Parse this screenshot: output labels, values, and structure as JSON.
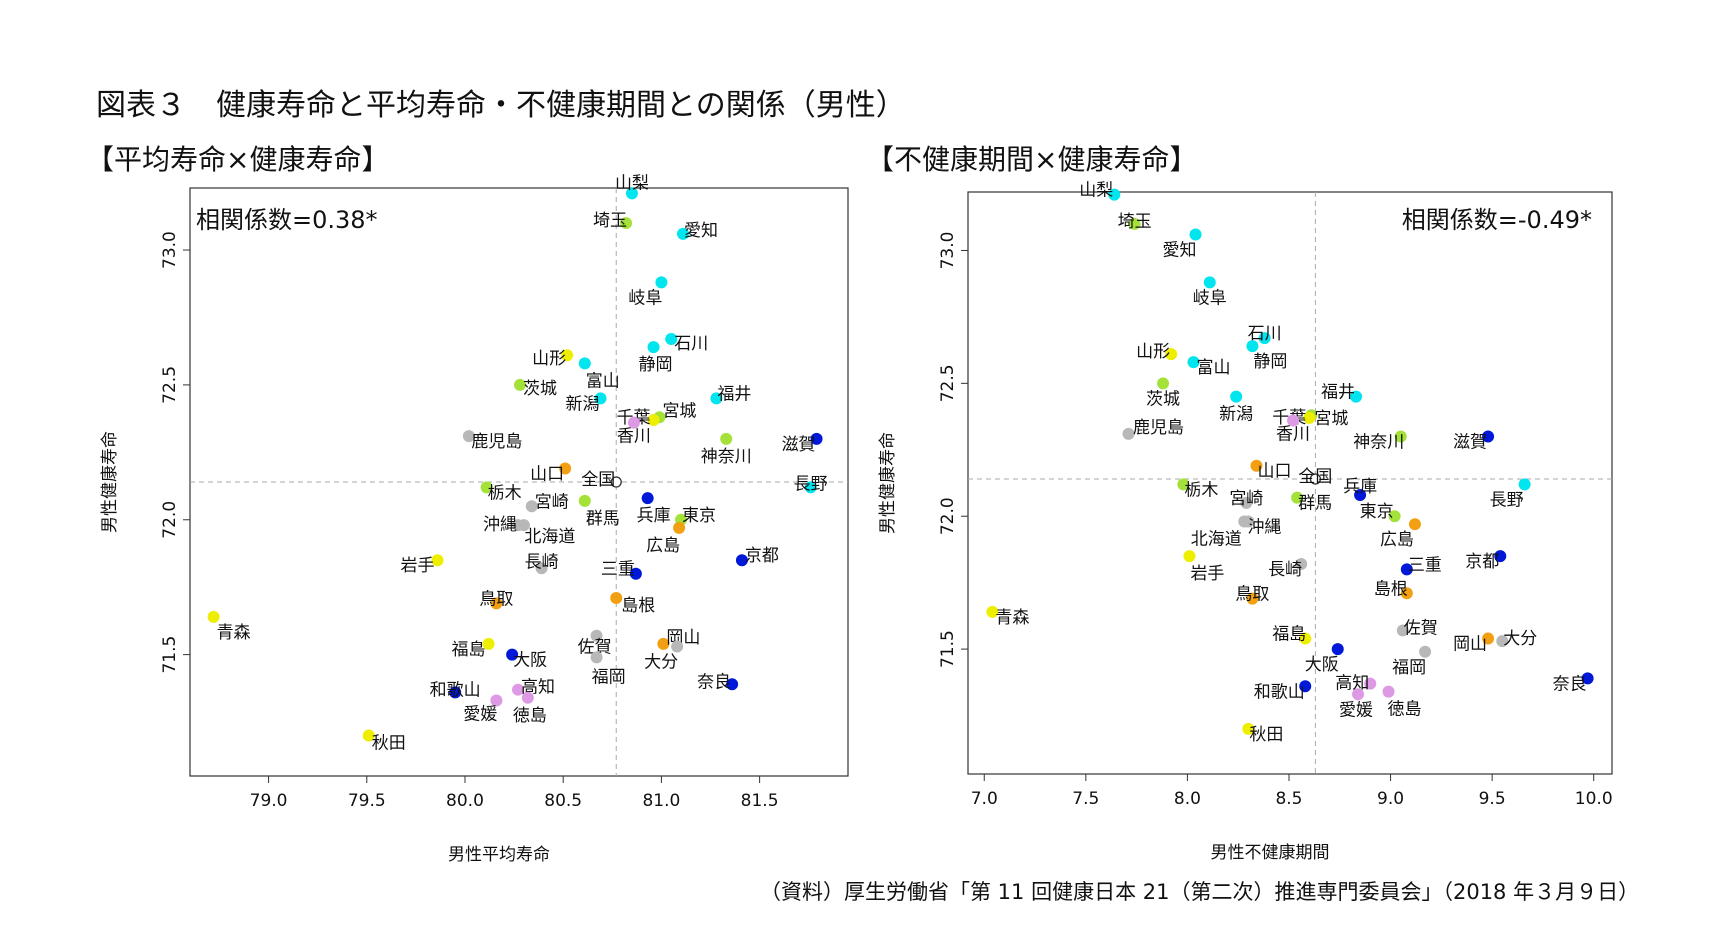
{
  "title": "図表３　健康寿命と平均寿命・不健康期間との関係（男性）",
  "source": "（資料）厚生労働省「第 11 回健康日本 21（第二次）推進専門委員会」（2018 年３月９日）",
  "colors": {
    "cyan": "#00e5ee",
    "green": "#a4e23a",
    "yellow": "#eeee00",
    "gray": "#b8b8b8",
    "orange": "#f2a012",
    "blue": "#0018d8",
    "purple": "#dd99e4",
    "violet": "#b090d8"
  },
  "chart_data": [
    {
      "type": "scatter",
      "heading": "【平均寿命×健康寿命】",
      "xlabel": "男性平均寿命",
      "ylabel": "男性健康寿命",
      "annotation": "相関係数=0.38*",
      "xlim": [
        78.6,
        81.95
      ],
      "ylim": [
        71.05,
        73.23
      ],
      "xticks": [
        "79.0",
        "79.5",
        "80.0",
        "80.5",
        "81.0",
        "81.5"
      ],
      "yticks": [
        "71.5",
        "72.0",
        "72.5",
        "73.0"
      ],
      "grid": false,
      "reference_lines": {
        "x": 80.77,
        "y": 72.14
      },
      "points": [
        {
          "label": "山梨",
          "x": 80.85,
          "y": 73.21,
          "color": "cyan",
          "dx": 0,
          "dy": -10,
          "anchor": "middle"
        },
        {
          "label": "埼玉",
          "x": 80.82,
          "y": 73.1,
          "color": "green",
          "dx": -16,
          "dy": -2,
          "anchor": "middle"
        },
        {
          "label": "愛知",
          "x": 81.11,
          "y": 73.06,
          "color": "cyan",
          "dx": 18,
          "dy": -3,
          "anchor": "middle"
        },
        {
          "label": "岐阜",
          "x": 81.0,
          "y": 72.88,
          "color": "cyan",
          "dx": -16,
          "dy": 16,
          "anchor": "middle"
        },
        {
          "label": "石川",
          "x": 81.05,
          "y": 72.67,
          "color": "cyan",
          "dx": 20,
          "dy": 5,
          "anchor": "middle"
        },
        {
          "label": "静岡",
          "x": 80.96,
          "y": 72.64,
          "color": "cyan",
          "dx": 2,
          "dy": 18,
          "anchor": "middle"
        },
        {
          "label": "山形",
          "x": 80.52,
          "y": 72.61,
          "color": "yellow",
          "dx": -18,
          "dy": 4,
          "anchor": "middle"
        },
        {
          "label": "富山",
          "x": 80.61,
          "y": 72.58,
          "color": "cyan",
          "dx": 18,
          "dy": 18,
          "anchor": "middle"
        },
        {
          "label": "茨城",
          "x": 80.28,
          "y": 72.5,
          "color": "green",
          "dx": 20,
          "dy": 4,
          "anchor": "middle"
        },
        {
          "label": "福井",
          "x": 81.28,
          "y": 72.45,
          "color": "cyan",
          "dx": 18,
          "dy": -4,
          "anchor": "middle"
        },
        {
          "label": "新潟",
          "x": 80.69,
          "y": 72.45,
          "color": "cyan",
          "dx": -18,
          "dy": 6,
          "anchor": "middle"
        },
        {
          "label": "宮城",
          "x": 80.99,
          "y": 72.38,
          "color": "green",
          "dx": 20,
          "dy": -6,
          "anchor": "middle"
        },
        {
          "label": "千葉",
          "x": 80.96,
          "y": 72.37,
          "color": "yellow",
          "dx": -20,
          "dy": -2,
          "anchor": "middle"
        },
        {
          "label": "香川",
          "x": 80.86,
          "y": 72.36,
          "color": "purple",
          "dx": 0,
          "dy": 14,
          "anchor": "middle"
        },
        {
          "label": "鹿児島",
          "x": 80.02,
          "y": 72.31,
          "color": "gray",
          "dx": 28,
          "dy": 6,
          "anchor": "middle"
        },
        {
          "label": "神奈川",
          "x": 81.33,
          "y": 72.3,
          "color": "green",
          "dx": 0,
          "dy": 18,
          "anchor": "middle"
        },
        {
          "label": "滋賀",
          "x": 81.79,
          "y": 72.3,
          "color": "blue",
          "dx": -18,
          "dy": 6,
          "anchor": "middle"
        },
        {
          "label": "山口",
          "x": 80.51,
          "y": 72.19,
          "color": "orange",
          "dx": -18,
          "dy": 6,
          "anchor": "middle"
        },
        {
          "label": "全国",
          "x": 80.77,
          "y": 72.14,
          "color": "hollow",
          "dx": -18,
          "dy": -2,
          "anchor": "middle"
        },
        {
          "label": "長野",
          "x": 81.76,
          "y": 72.12,
          "color": "cyan",
          "dx": 0,
          "dy": -3,
          "anchor": "middle"
        },
        {
          "label": "栃木",
          "x": 80.11,
          "y": 72.12,
          "color": "green",
          "dx": 18,
          "dy": 6,
          "anchor": "middle"
        },
        {
          "label": "宮崎",
          "x": 80.34,
          "y": 72.05,
          "color": "gray",
          "dx": 20,
          "dy": -4,
          "anchor": "middle"
        },
        {
          "label": "兵庫",
          "x": 80.93,
          "y": 72.08,
          "color": "blue",
          "dx": 6,
          "dy": 18,
          "anchor": "middle"
        },
        {
          "label": "群馬",
          "x": 80.61,
          "y": 72.07,
          "color": "green",
          "dx": 18,
          "dy": 18,
          "anchor": "middle"
        },
        {
          "label": "東京",
          "x": 81.1,
          "y": 72.0,
          "color": "green",
          "dx": 18,
          "dy": -4,
          "anchor": "middle"
        },
        {
          "label": "沖縄",
          "x": 80.27,
          "y": 71.98,
          "color": "gray",
          "dx": -18,
          "dy": 0,
          "anchor": "middle"
        },
        {
          "label": "北海道",
          "x": 80.3,
          "y": 71.98,
          "color": "gray",
          "dx": 26,
          "dy": 12,
          "anchor": "middle"
        },
        {
          "label": "広島",
          "x": 81.09,
          "y": 71.97,
          "color": "orange",
          "dx": -16,
          "dy": 18,
          "anchor": "middle"
        },
        {
          "label": "京都",
          "x": 81.41,
          "y": 71.85,
          "color": "blue",
          "dx": 20,
          "dy": -4,
          "anchor": "middle"
        },
        {
          "label": "岩手",
          "x": 79.86,
          "y": 71.85,
          "color": "yellow",
          "dx": -20,
          "dy": 6,
          "anchor": "middle"
        },
        {
          "label": "長崎",
          "x": 80.39,
          "y": 71.82,
          "color": "gray",
          "dx": 0,
          "dy": -6,
          "anchor": "middle"
        },
        {
          "label": "三重",
          "x": 80.87,
          "y": 71.8,
          "color": "blue",
          "dx": -18,
          "dy": -4,
          "anchor": "middle"
        },
        {
          "label": "鳥取",
          "x": 80.16,
          "y": 71.69,
          "color": "orange",
          "dx": 0,
          "dy": -4,
          "anchor": "middle"
        },
        {
          "label": "島根",
          "x": 80.77,
          "y": 71.71,
          "color": "orange",
          "dx": 22,
          "dy": 8,
          "anchor": "middle"
        },
        {
          "label": "青森",
          "x": 78.72,
          "y": 71.64,
          "color": "yellow",
          "dx": 20,
          "dy": 16,
          "anchor": "middle"
        },
        {
          "label": "佐賀",
          "x": 80.67,
          "y": 71.57,
          "color": "gray",
          "dx": -2,
          "dy": 12,
          "anchor": "middle"
        },
        {
          "label": "岡山",
          "x": 81.01,
          "y": 71.54,
          "color": "orange",
          "dx": 20,
          "dy": -6,
          "anchor": "middle"
        },
        {
          "label": "福島",
          "x": 80.12,
          "y": 71.54,
          "color": "yellow",
          "dx": -20,
          "dy": 6,
          "anchor": "middle"
        },
        {
          "label": "大分",
          "x": 81.08,
          "y": 71.53,
          "color": "gray",
          "dx": -16,
          "dy": 16,
          "anchor": "middle"
        },
        {
          "label": "大阪",
          "x": 80.24,
          "y": 71.5,
          "color": "blue",
          "dx": 18,
          "dy": 6,
          "anchor": "middle"
        },
        {
          "label": "福岡",
          "x": 80.67,
          "y": 71.49,
          "color": "gray",
          "dx": 12,
          "dy": 20,
          "anchor": "middle"
        },
        {
          "label": "奈良",
          "x": 81.36,
          "y": 71.39,
          "color": "blue",
          "dx": -18,
          "dy": -2,
          "anchor": "middle"
        },
        {
          "label": "高知",
          "x": 80.27,
          "y": 71.37,
          "color": "purple",
          "dx": 20,
          "dy": -2,
          "anchor": "middle"
        },
        {
          "label": "和歌山",
          "x": 79.95,
          "y": 71.36,
          "color": "blue",
          "dx": 0,
          "dy": -2,
          "anchor": "middle"
        },
        {
          "label": "徳島",
          "x": 80.32,
          "y": 71.34,
          "color": "purple",
          "dx": 2,
          "dy": 18,
          "anchor": "middle"
        },
        {
          "label": "愛媛",
          "x": 80.16,
          "y": 71.33,
          "color": "purple",
          "dx": -16,
          "dy": 14,
          "anchor": "middle"
        },
        {
          "label": "秋田",
          "x": 79.51,
          "y": 71.2,
          "color": "yellow",
          "dx": 20,
          "dy": 8,
          "anchor": "middle"
        }
      ]
    },
    {
      "type": "scatter",
      "heading": "【不健康期間×健康寿命】",
      "xlabel": "男性不健康期間",
      "ylabel": "男性健康寿命",
      "annotation": "相関係数=-0.49*",
      "xlim": [
        6.92,
        10.09
      ],
      "ylim": [
        71.03,
        73.22
      ],
      "xticks": [
        "7.0",
        "7.5",
        "8.0",
        "8.5",
        "9.0",
        "9.5",
        "10.0"
      ],
      "yticks": [
        "71.5",
        "72.0",
        "72.5",
        "73.0"
      ],
      "grid": false,
      "reference_lines": {
        "x": 8.63,
        "y": 72.14
      },
      "points": [
        {
          "label": "山梨",
          "x": 7.64,
          "y": 73.21,
          "color": "cyan",
          "dx": -18,
          "dy": -4,
          "anchor": "middle"
        },
        {
          "label": "埼玉",
          "x": 7.74,
          "y": 73.1,
          "color": "green",
          "dx": 0,
          "dy": -2,
          "anchor": "middle"
        },
        {
          "label": "愛知",
          "x": 8.04,
          "y": 73.06,
          "color": "cyan",
          "dx": -16,
          "dy": 16,
          "anchor": "middle"
        },
        {
          "label": "岐阜",
          "x": 8.11,
          "y": 72.88,
          "color": "cyan",
          "dx": 0,
          "dy": 16,
          "anchor": "middle"
        },
        {
          "label": "石川",
          "x": 8.38,
          "y": 72.67,
          "color": "cyan",
          "dx": 0,
          "dy": -4,
          "anchor": "middle"
        },
        {
          "label": "静岡",
          "x": 8.32,
          "y": 72.64,
          "color": "cyan",
          "dx": 18,
          "dy": 16,
          "anchor": "middle"
        },
        {
          "label": "山形",
          "x": 7.92,
          "y": 72.61,
          "color": "yellow",
          "dx": -18,
          "dy": -2,
          "anchor": "middle"
        },
        {
          "label": "富山",
          "x": 8.03,
          "y": 72.58,
          "color": "cyan",
          "dx": 20,
          "dy": 6,
          "anchor": "middle"
        },
        {
          "label": "茨城",
          "x": 7.88,
          "y": 72.5,
          "color": "green",
          "dx": 0,
          "dy": 16,
          "anchor": "middle"
        },
        {
          "label": "福井",
          "x": 8.83,
          "y": 72.45,
          "color": "cyan",
          "dx": -18,
          "dy": -4,
          "anchor": "middle"
        },
        {
          "label": "新潟",
          "x": 8.24,
          "y": 72.45,
          "color": "cyan",
          "dx": 0,
          "dy": 18,
          "anchor": "middle"
        },
        {
          "label": "宮城",
          "x": 8.61,
          "y": 72.38,
          "color": "green",
          "dx": 20,
          "dy": 4,
          "anchor": "middle"
        },
        {
          "label": "千葉",
          "x": 8.6,
          "y": 72.37,
          "color": "yellow",
          "dx": -20,
          "dy": 0,
          "anchor": "middle"
        },
        {
          "label": "香川",
          "x": 8.52,
          "y": 72.36,
          "color": "purple",
          "dx": 0,
          "dy": 14,
          "anchor": "middle"
        },
        {
          "label": "鹿児島",
          "x": 7.71,
          "y": 72.31,
          "color": "gray",
          "dx": 30,
          "dy": -6,
          "anchor": "middle"
        },
        {
          "label": "神奈川",
          "x": 9.05,
          "y": 72.3,
          "color": "green",
          "dx": -22,
          "dy": 6,
          "anchor": "middle"
        },
        {
          "label": "滋賀",
          "x": 9.48,
          "y": 72.3,
          "color": "blue",
          "dx": -18,
          "dy": 6,
          "anchor": "middle"
        },
        {
          "label": "山口",
          "x": 8.34,
          "y": 72.19,
          "color": "orange",
          "dx": 18,
          "dy": 6,
          "anchor": "middle"
        },
        {
          "label": "全国",
          "x": 8.63,
          "y": 72.14,
          "color": "hollow",
          "dx": 0,
          "dy": -2,
          "anchor": "middle"
        },
        {
          "label": "長野",
          "x": 9.66,
          "y": 72.12,
          "color": "cyan",
          "dx": -18,
          "dy": 16,
          "anchor": "middle"
        },
        {
          "label": "栃木",
          "x": 7.98,
          "y": 72.12,
          "color": "green",
          "dx": 18,
          "dy": 6,
          "anchor": "middle"
        },
        {
          "label": "宮崎",
          "x": 8.29,
          "y": 72.05,
          "color": "gray",
          "dx": 0,
          "dy": -4,
          "anchor": "middle"
        },
        {
          "label": "兵庫",
          "x": 8.85,
          "y": 72.08,
          "color": "blue",
          "dx": 0,
          "dy": -8,
          "anchor": "middle"
        },
        {
          "label": "群馬",
          "x": 8.54,
          "y": 72.07,
          "color": "green",
          "dx": 18,
          "dy": 6,
          "anchor": "middle"
        },
        {
          "label": "東京",
          "x": 9.02,
          "y": 72.0,
          "color": "green",
          "dx": -18,
          "dy": -4,
          "anchor": "middle"
        },
        {
          "label": "沖縄",
          "x": 8.3,
          "y": 71.98,
          "color": "gray",
          "dx": 16,
          "dy": 6,
          "anchor": "middle"
        },
        {
          "label": "北海道",
          "x": 8.28,
          "y": 71.98,
          "color": "gray",
          "dx": -28,
          "dy": 18,
          "anchor": "middle"
        },
        {
          "label": "広島",
          "x": 9.12,
          "y": 71.97,
          "color": "orange",
          "dx": -18,
          "dy": 16,
          "anchor": "middle"
        },
        {
          "label": "京都",
          "x": 9.54,
          "y": 71.85,
          "color": "blue",
          "dx": -18,
          "dy": 6,
          "anchor": "middle"
        },
        {
          "label": "岩手",
          "x": 8.01,
          "y": 71.85,
          "color": "yellow",
          "dx": 18,
          "dy": 18,
          "anchor": "middle"
        },
        {
          "label": "長崎",
          "x": 8.56,
          "y": 71.82,
          "color": "gray",
          "dx": -16,
          "dy": 6,
          "anchor": "middle"
        },
        {
          "label": "三重",
          "x": 9.08,
          "y": 71.8,
          "color": "blue",
          "dx": 18,
          "dy": -4,
          "anchor": "middle"
        },
        {
          "label": "鳥取",
          "x": 8.32,
          "y": 71.69,
          "color": "orange",
          "dx": 0,
          "dy": -4,
          "anchor": "middle"
        },
        {
          "label": "島根",
          "x": 9.08,
          "y": 71.71,
          "color": "orange",
          "dx": -16,
          "dy": -4,
          "anchor": "middle"
        },
        {
          "label": "青森",
          "x": 7.04,
          "y": 71.64,
          "color": "yellow",
          "dx": 20,
          "dy": 6,
          "anchor": "middle"
        },
        {
          "label": "佐賀",
          "x": 9.06,
          "y": 71.57,
          "color": "gray",
          "dx": 18,
          "dy": -2,
          "anchor": "middle"
        },
        {
          "label": "岡山",
          "x": 9.48,
          "y": 71.54,
          "color": "orange",
          "dx": -18,
          "dy": 6,
          "anchor": "middle"
        },
        {
          "label": "福島",
          "x": 8.58,
          "y": 71.54,
          "color": "yellow",
          "dx": -16,
          "dy": -4,
          "anchor": "middle"
        },
        {
          "label": "大分",
          "x": 9.55,
          "y": 71.53,
          "color": "gray",
          "dx": 18,
          "dy": -2,
          "anchor": "middle"
        },
        {
          "label": "大阪",
          "x": 8.74,
          "y": 71.5,
          "color": "blue",
          "dx": -16,
          "dy": 16,
          "anchor": "middle"
        },
        {
          "label": "福岡",
          "x": 9.17,
          "y": 71.49,
          "color": "gray",
          "dx": -16,
          "dy": 16,
          "anchor": "middle"
        },
        {
          "label": "奈良",
          "x": 9.97,
          "y": 71.39,
          "color": "blue",
          "dx": -18,
          "dy": 6,
          "anchor": "middle"
        },
        {
          "label": "高知",
          "x": 8.9,
          "y": 71.37,
          "color": "purple",
          "dx": -18,
          "dy": 0,
          "anchor": "middle"
        },
        {
          "label": "和歌山",
          "x": 8.58,
          "y": 71.36,
          "color": "blue",
          "dx": -26,
          "dy": 6,
          "anchor": "middle"
        },
        {
          "label": "徳島",
          "x": 8.99,
          "y": 71.34,
          "color": "purple",
          "dx": 16,
          "dy": 18,
          "anchor": "middle"
        },
        {
          "label": "愛媛",
          "x": 8.84,
          "y": 71.33,
          "color": "purple",
          "dx": -2,
          "dy": 16,
          "anchor": "middle"
        },
        {
          "label": "秋田",
          "x": 8.3,
          "y": 71.2,
          "color": "yellow",
          "dx": 18,
          "dy": 6,
          "anchor": "middle"
        }
      ]
    }
  ]
}
